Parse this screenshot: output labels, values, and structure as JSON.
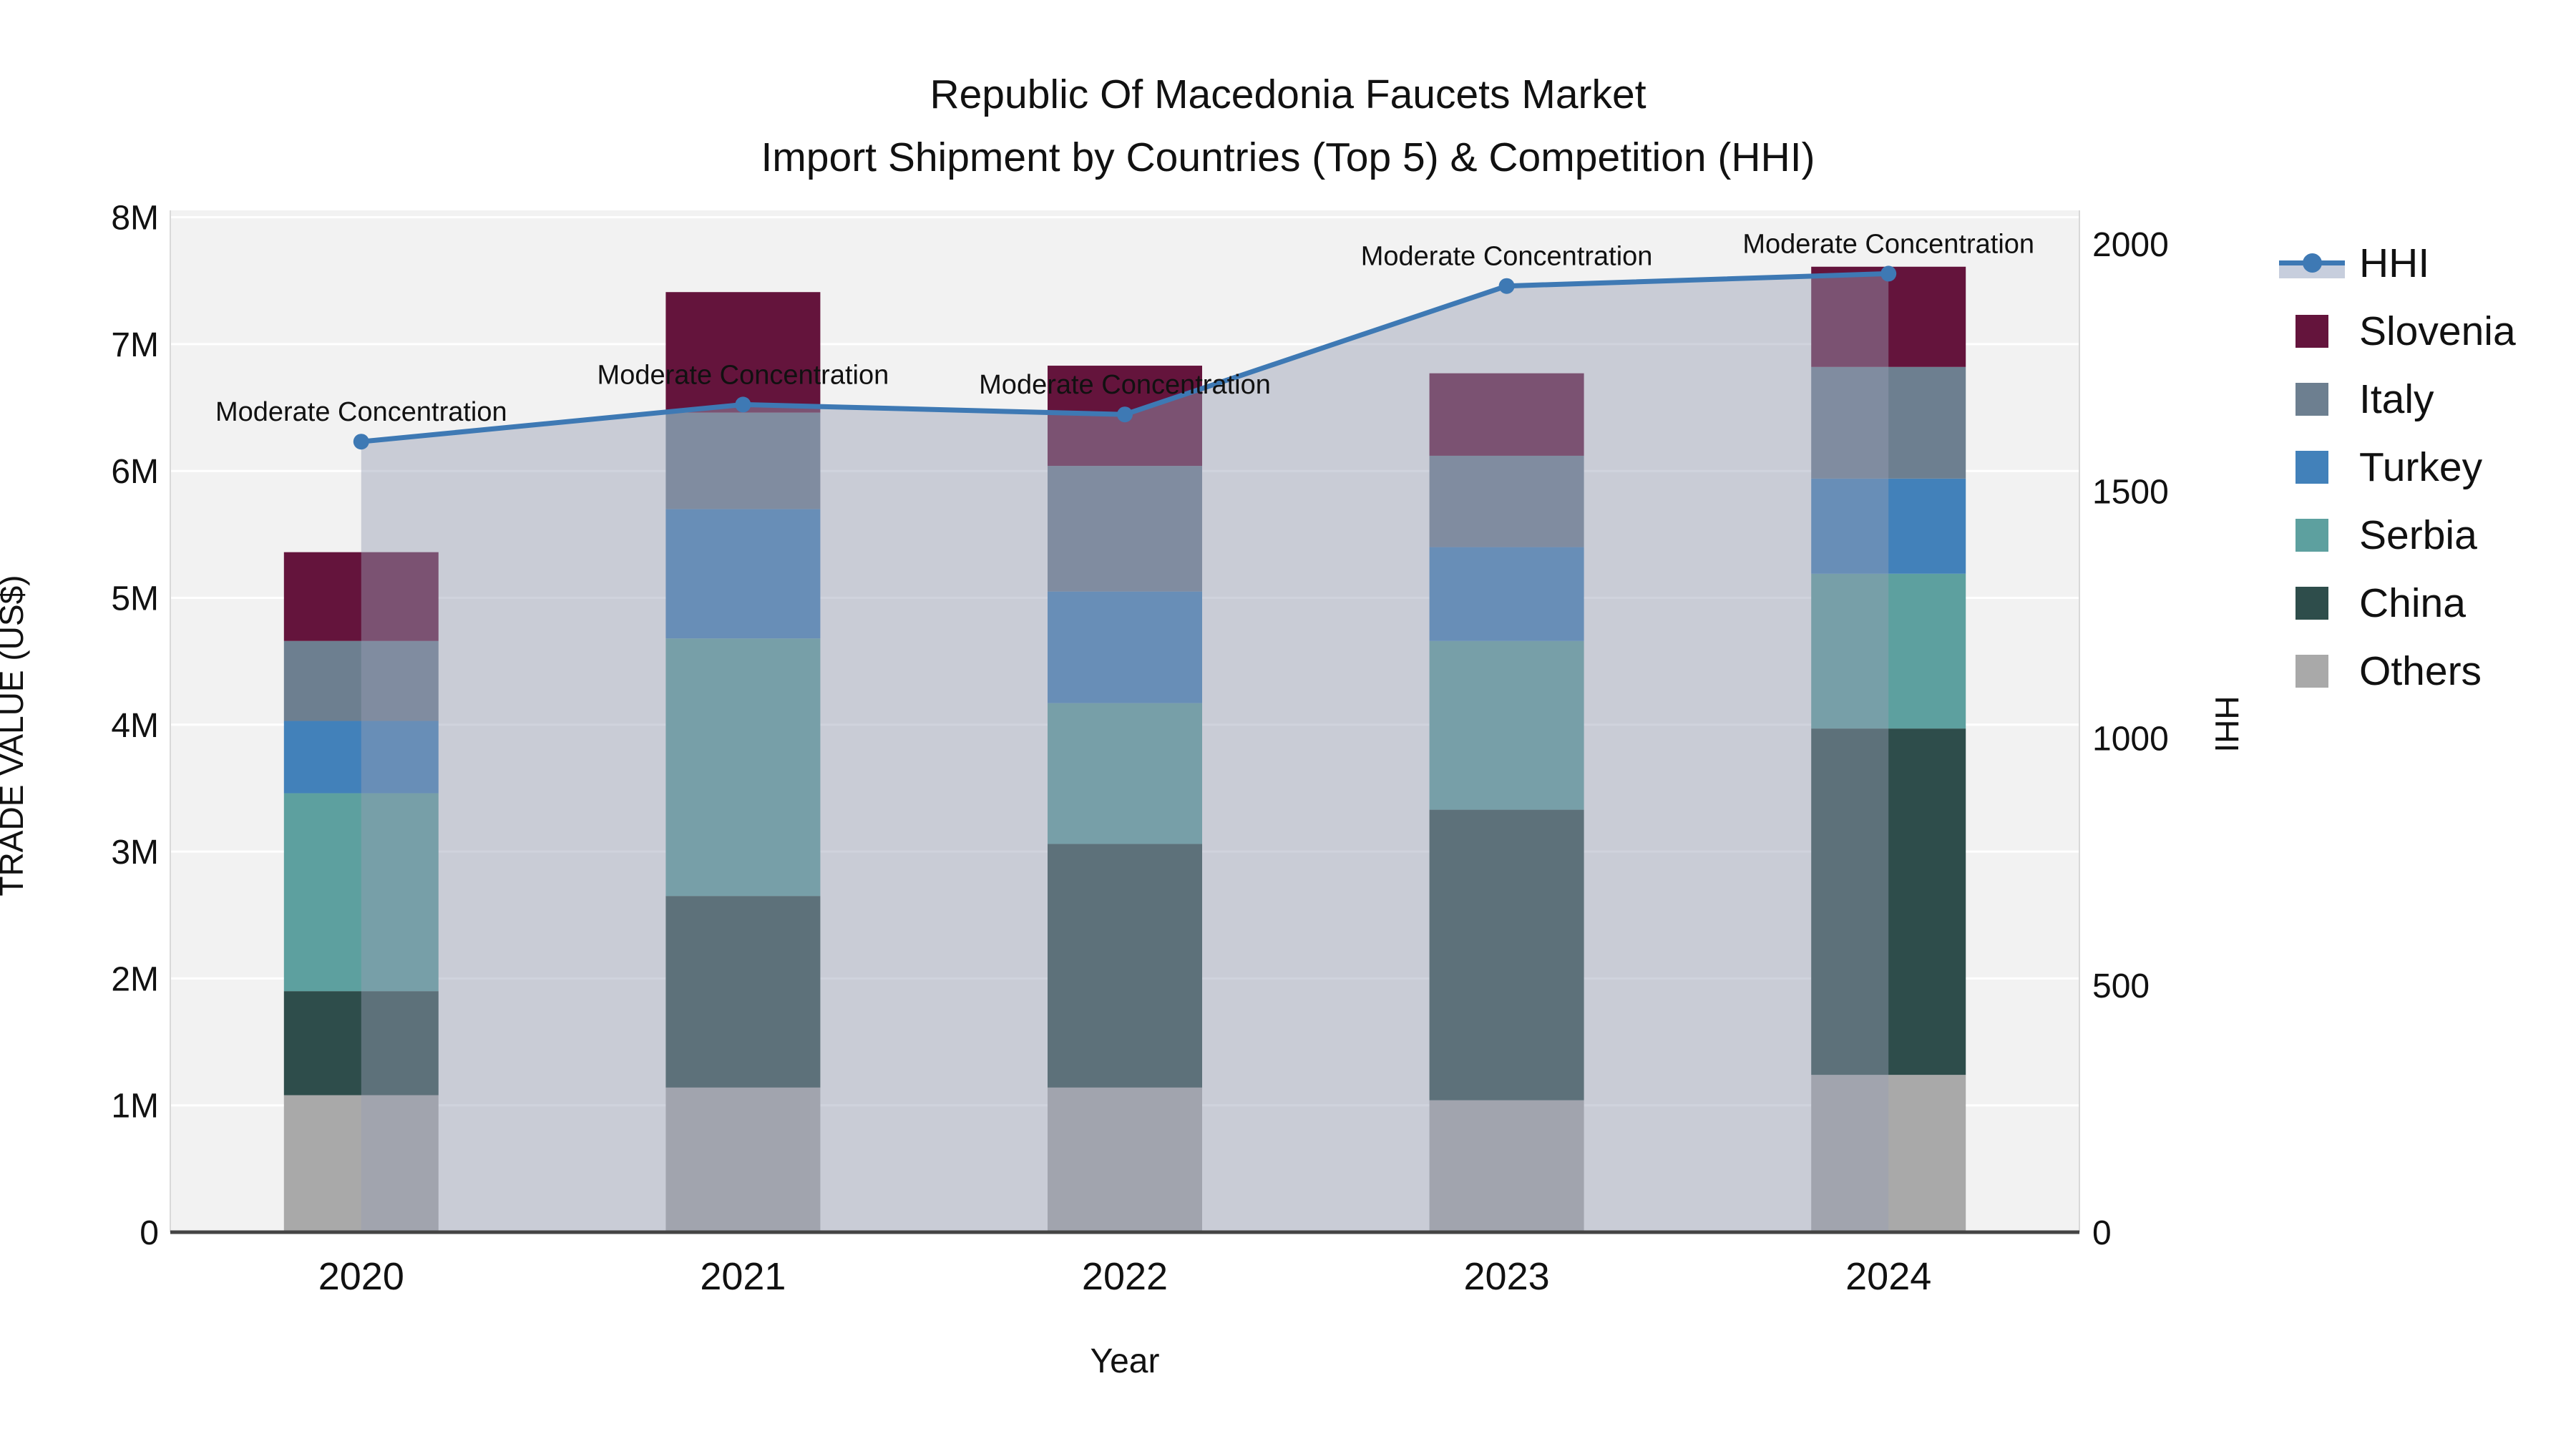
{
  "title": {
    "line1": "Republic Of Macedonia Faucets Market",
    "line2": "Import Shipment by Countries (Top 5) & Competition (HHI)"
  },
  "axes": {
    "y_left": {
      "title": "TRADE VALUE (US$)",
      "ticks": [
        {
          "label": "0",
          "value": 0
        },
        {
          "label": "1M",
          "value": 1
        },
        {
          "label": "2M",
          "value": 2
        },
        {
          "label": "3M",
          "value": 3
        },
        {
          "label": "4M",
          "value": 4
        },
        {
          "label": "5M",
          "value": 5
        },
        {
          "label": "6M",
          "value": 6
        },
        {
          "label": "7M",
          "value": 7
        },
        {
          "label": "8M",
          "value": 8
        }
      ]
    },
    "y_right": {
      "title": "HHI",
      "ticks": [
        {
          "label": "0",
          "value": 0
        },
        {
          "label": "500",
          "value": 500
        },
        {
          "label": "1000",
          "value": 1000
        },
        {
          "label": "1500",
          "value": 1500
        },
        {
          "label": "2000",
          "value": 2000
        }
      ]
    },
    "x": {
      "title": "Year"
    }
  },
  "legend": [
    {
      "label": "HHI",
      "type": "line",
      "color": "#3e79b4"
    },
    {
      "label": "Slovenia",
      "type": "square",
      "color": "#64143c"
    },
    {
      "label": "Italy",
      "type": "square",
      "color": "#6d7f90"
    },
    {
      "label": "Turkey",
      "type": "square",
      "color": "#4281ba"
    },
    {
      "label": "Serbia",
      "type": "square",
      "color": "#5da09f"
    },
    {
      "label": "China",
      "type": "square",
      "color": "#2e4d4b"
    },
    {
      "label": "Others",
      "type": "square",
      "color": "#a9a9a9"
    }
  ],
  "chart_data": {
    "type": "combo-stacked-bar-line",
    "categories": [
      "2020",
      "2021",
      "2022",
      "2023",
      "2024"
    ],
    "bar_value_unit": "US$ millions",
    "series": [
      {
        "name": "Others",
        "color": "#a9a9a9",
        "values": [
          1.08,
          1.14,
          1.14,
          1.04,
          1.24
        ]
      },
      {
        "name": "China",
        "color": "#2e4d4b",
        "values": [
          0.82,
          1.51,
          1.92,
          2.29,
          2.73
        ]
      },
      {
        "name": "Serbia",
        "color": "#5da09f",
        "values": [
          1.56,
          2.03,
          1.11,
          1.33,
          1.22
        ]
      },
      {
        "name": "Turkey",
        "color": "#4281ba",
        "values": [
          0.57,
          1.02,
          0.88,
          0.74,
          0.75
        ]
      },
      {
        "name": "Italy",
        "color": "#6d7f90",
        "values": [
          0.63,
          0.76,
          0.99,
          0.72,
          0.88
        ]
      },
      {
        "name": "Slovenia",
        "color": "#64143c",
        "values": [
          0.7,
          0.95,
          0.79,
          0.65,
          0.79
        ]
      }
    ],
    "bar_totals": [
      5.36,
      7.41,
      6.83,
      6.77,
      7.61
    ],
    "line": {
      "name": "HHI",
      "color": "#3e79b4",
      "area_fill": "rgba(151,158,180,0.45)",
      "values": [
        1600,
        1675,
        1655,
        1915,
        1940
      ]
    },
    "annotations": [
      "Moderate Concentration",
      "Moderate Concentration",
      "Moderate Concentration",
      "Moderate Concentration",
      "Moderate Concentration"
    ],
    "xlabel": "Year",
    "ylabel_left": "TRADE VALUE (US$)",
    "ylabel_right": "HHI",
    "ylim_left_millions": [
      0,
      8.05
    ],
    "ylim_right": [
      0,
      2068
    ],
    "grid": true,
    "legend_position": "right",
    "colors": {
      "plot_background": "#f2f2f2",
      "gridline": "#ffffff",
      "axis_line": "#444444",
      "text": "#111111"
    }
  }
}
